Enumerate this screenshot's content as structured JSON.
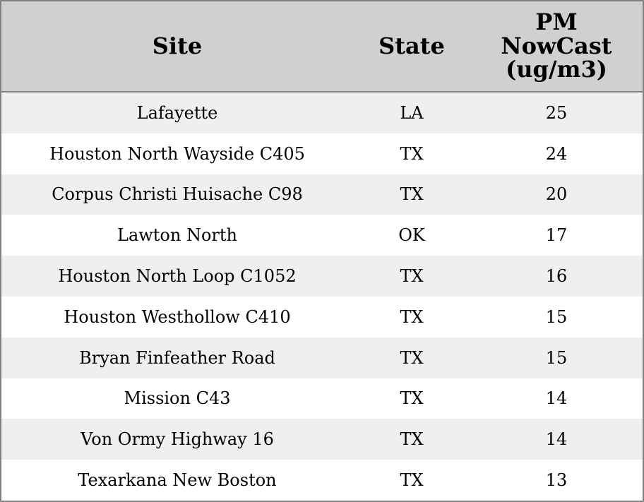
{
  "table": {
    "header": [
      "Site",
      "State",
      "PM NowCast (ug/m3)"
    ],
    "rows": [
      [
        "Lafayette",
        "LA",
        25
      ],
      [
        "Houston North Wayside C405",
        "TX",
        24
      ],
      [
        "Corpus Christi Huisache C98",
        "TX",
        20
      ],
      [
        "Lawton North",
        "OK",
        17
      ],
      [
        "Houston North Loop C1052",
        "TX",
        16
      ],
      [
        "Houston Westhollow C410",
        "TX",
        15
      ],
      [
        "Bryan Finfeather Road",
        "TX",
        15
      ],
      [
        "Mission C43",
        "TX",
        14
      ],
      [
        "Von Ormy Highway 16",
        "TX",
        14
      ],
      [
        "Texarkana New Boston",
        "TX",
        13
      ]
    ]
  }
}
